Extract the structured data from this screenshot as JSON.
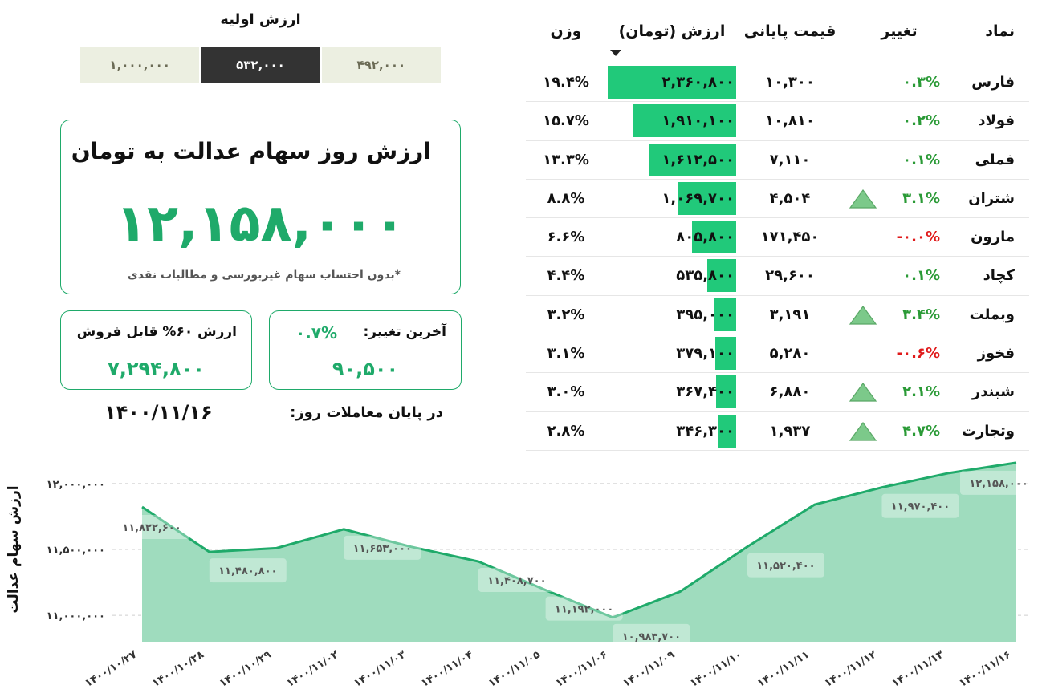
{
  "initial_value": {
    "title": "ارزش اولیه",
    "options": [
      "۱,۰۰۰,۰۰۰",
      "۵۳۲,۰۰۰",
      "۴۹۲,۰۰۰"
    ],
    "selected_index": 1
  },
  "main_card": {
    "title": "ارزش روز سهام عدالت به تومان",
    "value": "۱۲,۱۵۸,۰۰۰",
    "note": "*بدون احتساب سهام غیربورسی و مطالبات نقدی"
  },
  "sellable_card": {
    "label": "ارزش ۶۰% قابل فروش",
    "value": "۷,۲۹۴,۸۰۰"
  },
  "change_card": {
    "label": "آخرین تغییر:",
    "percent": "۰.۷%",
    "value": "۹۰,۵۰۰"
  },
  "trading_date": {
    "label": "در پایان معاملات روز:",
    "date": "۱۴۰۰/۱۱/۱۶"
  },
  "table": {
    "headers": {
      "symbol": "نماد",
      "change": "تغییر",
      "price": "قیمت پایانی",
      "value": "ارزش (تومان)",
      "weight": "وزن"
    },
    "rows": [
      {
        "symbol": "فارس",
        "change": "۰.۳%",
        "change_dir": "pos",
        "up_icon": false,
        "price": "۱۰,۳۰۰",
        "value": "۲,۳۶۰,۸۰۰",
        "value_num": 2360800,
        "weight": "۱۹.۴%"
      },
      {
        "symbol": "فولاد",
        "change": "۰.۲%",
        "change_dir": "pos",
        "up_icon": false,
        "price": "۱۰,۸۱۰",
        "value": "۱,۹۱۰,۱۰۰",
        "value_num": 1910100,
        "weight": "۱۵.۷%"
      },
      {
        "symbol": "فملی",
        "change": "۰.۱%",
        "change_dir": "pos",
        "up_icon": false,
        "price": "۷,۱۱۰",
        "value": "۱,۶۱۲,۵۰۰",
        "value_num": 1612500,
        "weight": "۱۳.۳%"
      },
      {
        "symbol": "شتران",
        "change": "۳.۱%",
        "change_dir": "pos",
        "up_icon": true,
        "price": "۴,۵۰۴",
        "value": "۱,۰۶۹,۷۰۰",
        "value_num": 1069700,
        "weight": "۸.۸%"
      },
      {
        "symbol": "مارون",
        "change": "-۰.۰%",
        "change_dir": "neg",
        "up_icon": false,
        "price": "۱۷۱,۴۵۰",
        "value": "۸۰۵,۸۰۰",
        "value_num": 805800,
        "weight": "۶.۶%"
      },
      {
        "symbol": "کچاد",
        "change": "۰.۱%",
        "change_dir": "pos",
        "up_icon": false,
        "price": "۲۹,۶۰۰",
        "value": "۵۳۵,۸۰۰",
        "value_num": 535800,
        "weight": "۴.۴%"
      },
      {
        "symbol": "وبملت",
        "change": "۳.۴%",
        "change_dir": "pos",
        "up_icon": true,
        "price": "۳,۱۹۱",
        "value": "۳۹۵,۰۰۰",
        "value_num": 395000,
        "weight": "۳.۲%"
      },
      {
        "symbol": "فخوز",
        "change": "-۰.۶%",
        "change_dir": "neg",
        "up_icon": false,
        "price": "۵,۲۸۰",
        "value": "۳۷۹,۱۰۰",
        "value_num": 379100,
        "weight": "۳.۱%"
      },
      {
        "symbol": "شبندر",
        "change": "۲.۱%",
        "change_dir": "pos",
        "up_icon": true,
        "price": "۶,۸۸۰",
        "value": "۳۶۷,۴۰۰",
        "value_num": 367400,
        "weight": "۳.۰%"
      },
      {
        "symbol": "وتجارت",
        "change": "۴.۷%",
        "change_dir": "pos",
        "up_icon": true,
        "price": "۱,۹۳۷",
        "value": "۳۴۶,۳۰۰",
        "value_num": 346300,
        "weight": "۲.۸%"
      }
    ]
  },
  "colors": {
    "accent": "#1faa6a",
    "bar": "#21c97a",
    "area_fill": "#9fdcbe",
    "positive": "#2a9a36",
    "negative": "#e0191a",
    "triangle": "#7cc98a"
  },
  "chart_data": {
    "type": "area",
    "ylabel": "ارزش سهام عدالت",
    "ylim": [
      10800000,
      12200000
    ],
    "yticks": [
      11000000,
      11500000,
      12000000
    ],
    "ytick_labels": [
      "۱۱,۰۰۰,۰۰۰",
      "۱۱,۵۰۰,۰۰۰",
      "۱۲,۰۰۰,۰۰۰"
    ],
    "categories": [
      "۱۴۰۰/۱۰/۲۷",
      "۱۴۰۰/۱۰/۲۸",
      "۱۴۰۰/۱۰/۲۹",
      "۱۴۰۰/۱۱/۰۲",
      "۱۴۰۰/۱۱/۰۳",
      "۱۴۰۰/۱۱/۰۴",
      "۱۴۰۰/۱۱/۰۵",
      "۱۴۰۰/۱۱/۰۶",
      "۱۴۰۰/۱۱/۰۹",
      "۱۴۰۰/۱۱/۱۰",
      "۱۴۰۰/۱۱/۱۱",
      "۱۴۰۰/۱۱/۱۲",
      "۱۴۰۰/۱۱/۱۳",
      "۱۴۰۰/۱۱/۱۶"
    ],
    "values": [
      11822600,
      11480800,
      11510000,
      11653000,
      11520000,
      11408700,
      11192000,
      10983700,
      11180000,
      11520400,
      11840000,
      11970400,
      12080000,
      12158000
    ],
    "data_labels": [
      {
        "index": 0,
        "text": "۱۱,۸۲۲,۶۰۰"
      },
      {
        "index": 1,
        "text": "۱۱,۴۸۰,۸۰۰"
      },
      {
        "index": 3,
        "text": "۱۱,۶۵۳,۰۰۰"
      },
      {
        "index": 5,
        "text": "۱۱,۴۰۸,۷۰۰"
      },
      {
        "index": 6,
        "text": "۱۱,۱۹۲,۰۰۰"
      },
      {
        "index": 7,
        "text": "۱۰,۹۸۳,۷۰۰"
      },
      {
        "index": 9,
        "text": "۱۱,۵۲۰,۴۰۰"
      },
      {
        "index": 11,
        "text": "۱۱,۹۷۰,۴۰۰"
      },
      {
        "index": 13,
        "text": "۱۲,۱۵۸,۰۰۰"
      }
    ],
    "grid": true
  }
}
